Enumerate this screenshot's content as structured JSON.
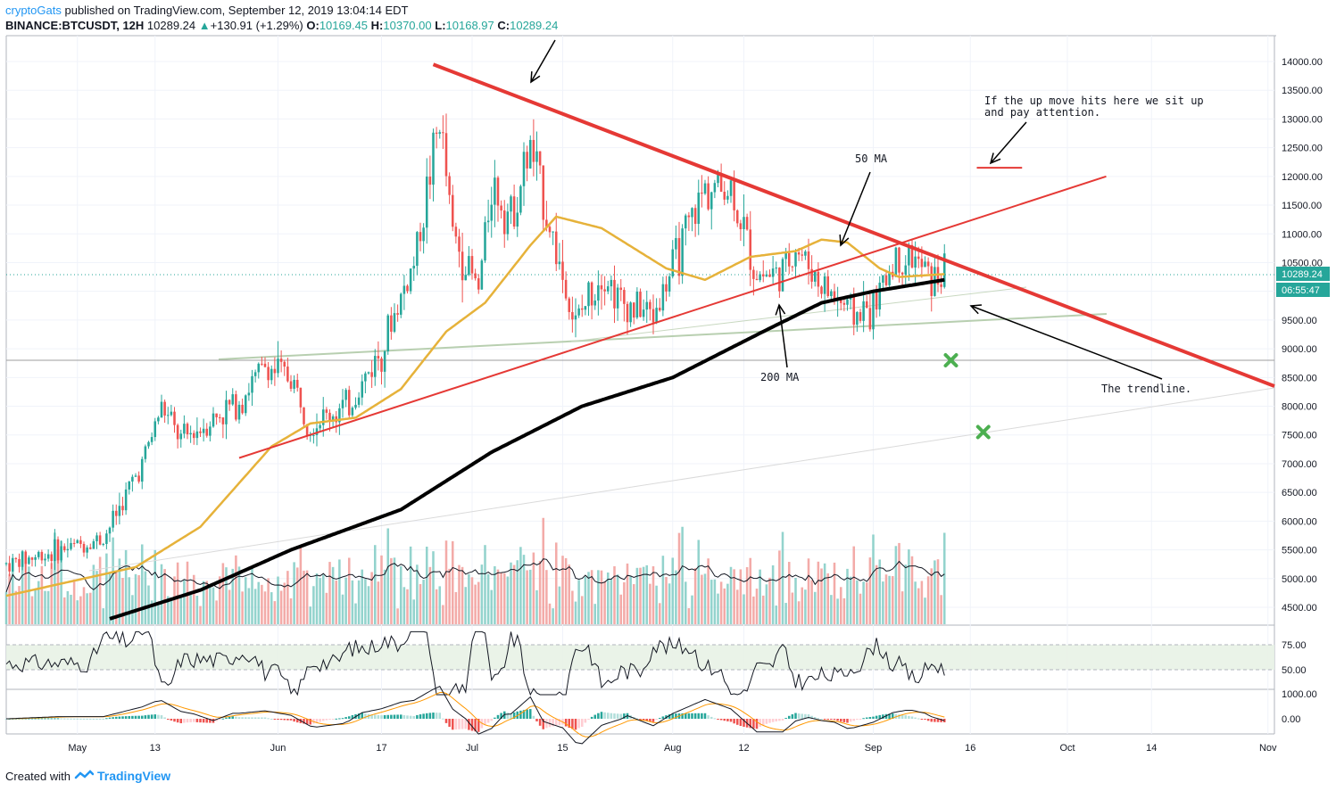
{
  "header": {
    "author": "cryptoGats",
    "published": "published on TradingView.com, September 12, 2019 13:04:14 EDT",
    "symbol": "BINANCE:BTCUSDT, 12H",
    "price": "10289.24",
    "change_arrow": "▲",
    "change": "+130.91 (+1.29%)",
    "o_label": "O:",
    "o_val": "10169.45",
    "h_label": "H:",
    "h_val": "10370.00",
    "l_label": "L:",
    "l_val": "10168.97",
    "c_label": "C:",
    "c_val": "10289.24"
  },
  "footer": {
    "created": "Created with",
    "brand": "TradingView"
  },
  "annotations": {
    "fifty_ma": "50 MA",
    "two_hundred_ma": "200 MA",
    "trendline": "The trendline.",
    "note_line1": "If the up move hits here we sit up",
    "note_line2": "and pay attention."
  },
  "price_badge": "10289.24",
  "countdown_badge": "06:55:47",
  "colors": {
    "up": "#26a69a",
    "down": "#ef5350",
    "ma50": "#e6b23a",
    "ma200": "#000000",
    "resistance": "#e53935",
    "support": "#e53935",
    "target": "#4caf50"
  },
  "chart_data": {
    "type": "candlestick",
    "interval": "12H",
    "x_tick_labels": [
      "May",
      "13",
      "Jun",
      "17",
      "Jul",
      "15",
      "Aug",
      "12",
      "Sep",
      "16",
      "Oct",
      "14",
      "Nov"
    ],
    "y_tick_labels": [
      "14000.00",
      "13500.00",
      "13000.00",
      "12500.00",
      "12000.00",
      "11500.00",
      "11000.00",
      "10500.00",
      "10000.00",
      "9500.00",
      "9000.00",
      "8500.00",
      "8000.00",
      "7500.00",
      "7000.00",
      "6500.00",
      "6000.00",
      "5500.00",
      "5000.00",
      "4500.00"
    ],
    "ylim": [
      4300,
      14500
    ],
    "x_range": [
      "2019-04-20",
      "2019-11-02"
    ],
    "ohlc_anchors": [
      [
        "2019-04-20",
        5250
      ],
      [
        "2019-05-05",
        5700
      ],
      [
        "2019-05-11",
        7000
      ],
      [
        "2019-05-14",
        8000
      ],
      [
        "2019-05-17",
        7400
      ],
      [
        "2019-05-26",
        8100
      ],
      [
        "2019-05-30",
        8700
      ],
      [
        "2019-06-03",
        8500
      ],
      [
        "2019-06-06",
        7700
      ],
      [
        "2019-06-12",
        8000
      ],
      [
        "2019-06-17",
        9000
      ],
      [
        "2019-06-22",
        10500
      ],
      [
        "2019-06-26",
        13000
      ],
      [
        "2019-06-28",
        11000
      ],
      [
        "2019-07-02",
        10000
      ],
      [
        "2019-07-04",
        11900
      ],
      [
        "2019-07-07",
        11300
      ],
      [
        "2019-07-10",
        12500
      ],
      [
        "2019-07-14",
        10700
      ],
      [
        "2019-07-17",
        9400
      ],
      [
        "2019-07-21",
        10400
      ],
      [
        "2019-07-24",
        9800
      ],
      [
        "2019-07-29",
        9600
      ],
      [
        "2019-08-01",
        10400
      ],
      [
        "2019-08-06",
        11800
      ],
      [
        "2019-08-10",
        11800
      ],
      [
        "2019-08-14",
        10300
      ],
      [
        "2019-08-18",
        10300
      ],
      [
        "2019-08-20",
        10800
      ],
      [
        "2019-08-24",
        10100
      ],
      [
        "2019-08-29",
        9600
      ],
      [
        "2019-09-01",
        9700
      ],
      [
        "2019-09-04",
        10500
      ],
      [
        "2019-09-07",
        10600
      ],
      [
        "2019-09-10",
        10200
      ],
      [
        "2019-09-12",
        10289
      ]
    ],
    "ma50_anchors": [
      [
        "2019-04-20",
        4700
      ],
      [
        "2019-05-10",
        5200
      ],
      [
        "2019-05-20",
        5900
      ],
      [
        "2019-05-31",
        7300
      ],
      [
        "2019-06-06",
        7700
      ],
      [
        "2019-06-13",
        7800
      ],
      [
        "2019-06-20",
        8300
      ],
      [
        "2019-06-27",
        9300
      ],
      [
        "2019-07-03",
        9800
      ],
      [
        "2019-07-10",
        10800
      ],
      [
        "2019-07-14",
        11300
      ],
      [
        "2019-07-21",
        11100
      ],
      [
        "2019-07-31",
        10400
      ],
      [
        "2019-08-06",
        10200
      ],
      [
        "2019-08-13",
        10600
      ],
      [
        "2019-08-20",
        10700
      ],
      [
        "2019-08-24",
        10900
      ],
      [
        "2019-08-28",
        10850
      ],
      [
        "2019-09-02",
        10400
      ],
      [
        "2019-09-05",
        10250
      ],
      [
        "2019-09-12",
        10300
      ]
    ],
    "ma200_anchors": [
      [
        "2019-05-06",
        4300
      ],
      [
        "2019-05-20",
        4800
      ],
      [
        "2019-06-03",
        5500
      ],
      [
        "2019-06-20",
        6200
      ],
      [
        "2019-07-04",
        7200
      ],
      [
        "2019-07-18",
        8000
      ],
      [
        "2019-08-01",
        8500
      ],
      [
        "2019-08-15",
        9300
      ],
      [
        "2019-08-24",
        9800
      ],
      [
        "2019-09-01",
        10000
      ],
      [
        "2019-09-12",
        10200
      ]
    ],
    "resistance_line": {
      "from": [
        "2019-06-25",
        13950
      ],
      "to": [
        "2019-11-02",
        8350
      ]
    },
    "support_line": {
      "from": [
        "2019-05-26",
        7100
      ],
      "to": [
        "2019-10-07",
        12000
      ]
    },
    "target_level": {
      "from": [
        "2019-09-17",
        12150
      ],
      "to": [
        "2019-09-24",
        12150
      ]
    },
    "horizontal_level": 8800,
    "targets_x": [
      [
        "2019-09-13",
        8800
      ],
      [
        "2019-09-18",
        7550
      ]
    ],
    "last_price": 10289.24,
    "rsi": {
      "levels": [
        75,
        50
      ],
      "tick_labels": [
        "75.00",
        "50.00"
      ]
    },
    "macd": {
      "tick_labels": [
        "1000.00",
        "0.00"
      ]
    }
  }
}
